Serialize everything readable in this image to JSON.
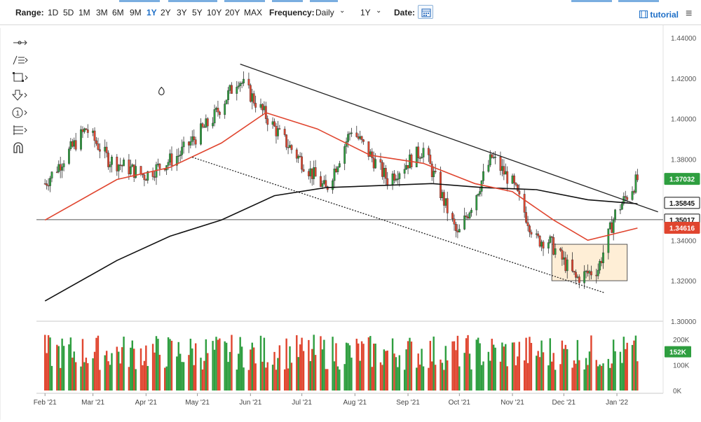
{
  "toolbar": {
    "range_label": "Range:",
    "ranges": [
      "1D",
      "5D",
      "1M",
      "3M",
      "6M",
      "9M",
      "1Y",
      "2Y",
      "3Y",
      "5Y",
      "10Y",
      "20Y",
      "MAX"
    ],
    "active_range": "1Y",
    "frequency_label": "Frequency:",
    "frequency_value": "Daily",
    "period_value": "1Y",
    "date_label": "Date:",
    "tutorial_label": "tutorial",
    "menu_glyph": "≡"
  },
  "tools": [
    "crosshair-icon",
    "draw-lines-icon",
    "shapes-icon",
    "arrow-icon",
    "annotation-icon",
    "fibonacci-icon",
    "magnet-icon"
  ],
  "chart_data": {
    "type": "candlestick",
    "price_axis": {
      "ticks": [
        "1.44000",
        "1.42000",
        "1.40000",
        "1.38000",
        "1.36000",
        "1.34000",
        "1.32000",
        "1.30000"
      ],
      "min": 1.3,
      "max": 1.44
    },
    "volume_axis": {
      "ticks": [
        "200K",
        "100K",
        "0K"
      ],
      "max": 250000
    },
    "x_labels": [
      "Feb '21",
      "Mar '21",
      "Apr '21",
      "May '21",
      "Jun '21",
      "Jul '21",
      "Aug '21",
      "Sep '21",
      "Oct '21",
      "Nov '21",
      "Dec '21",
      "Jan '22"
    ],
    "price_labels": [
      {
        "text": "1.37032",
        "value": 1.37032,
        "color": "#2e9e3f"
      },
      {
        "text": "1.35845",
        "value": 1.35845,
        "color": "#111111"
      },
      {
        "text": "1.35017",
        "value": 1.35017,
        "color": "#111111"
      },
      {
        "text": "1.34616",
        "value": 1.34616,
        "color": "#e0452f"
      }
    ],
    "volume_label": {
      "text": "152K",
      "value": 152000,
      "color": "#2e9e3f"
    },
    "horizontal_level": 1.35017,
    "anchors": [
      {
        "x": "2021-02-01",
        "y": 1.368
      },
      {
        "x": "2021-02-25",
        "y": 1.395
      },
      {
        "x": "2021-03-10",
        "y": 1.38
      },
      {
        "x": "2021-03-31",
        "y": 1.372
      },
      {
        "x": "2021-04-20",
        "y": 1.382
      },
      {
        "x": "2021-05-10",
        "y": 1.4
      },
      {
        "x": "2021-05-25",
        "y": 1.42
      },
      {
        "x": "2021-06-18",
        "y": 1.392
      },
      {
        "x": "2021-07-15",
        "y": 1.365
      },
      {
        "x": "2021-07-30",
        "y": 1.395
      },
      {
        "x": "2021-08-20",
        "y": 1.37
      },
      {
        "x": "2021-09-10",
        "y": 1.385
      },
      {
        "x": "2021-09-30",
        "y": 1.342
      },
      {
        "x": "2021-10-20",
        "y": 1.381
      },
      {
        "x": "2021-11-01",
        "y": 1.368
      },
      {
        "x": "2021-11-15",
        "y": 1.34
      },
      {
        "x": "2021-11-22",
        "y": 1.34
      },
      {
        "x": "2021-12-08",
        "y": 1.321
      },
      {
        "x": "2021-12-21",
        "y": 1.326
      },
      {
        "x": "2021-12-31",
        "y": 1.353
      },
      {
        "x": "2022-01-13",
        "y": 1.37
      }
    ],
    "ma_fast": [
      {
        "x": "2021-02-01",
        "y": 1.35
      },
      {
        "x": "2021-03-15",
        "y": 1.37
      },
      {
        "x": "2021-04-15",
        "y": 1.376
      },
      {
        "x": "2021-05-15",
        "y": 1.388
      },
      {
        "x": "2021-06-10",
        "y": 1.403
      },
      {
        "x": "2021-07-10",
        "y": 1.395
      },
      {
        "x": "2021-08-10",
        "y": 1.382
      },
      {
        "x": "2021-09-10",
        "y": 1.378
      },
      {
        "x": "2021-10-10",
        "y": 1.368
      },
      {
        "x": "2021-11-01",
        "y": 1.364
      },
      {
        "x": "2021-11-25",
        "y": 1.35
      },
      {
        "x": "2021-12-15",
        "y": 1.34
      },
      {
        "x": "2022-01-13",
        "y": 1.346
      }
    ],
    "ma_slow": [
      {
        "x": "2021-02-01",
        "y": 1.31
      },
      {
        "x": "2021-03-15",
        "y": 1.33
      },
      {
        "x": "2021-04-15",
        "y": 1.342
      },
      {
        "x": "2021-05-15",
        "y": 1.35
      },
      {
        "x": "2021-06-15",
        "y": 1.362
      },
      {
        "x": "2021-07-15",
        "y": 1.366
      },
      {
        "x": "2021-08-15",
        "y": 1.367
      },
      {
        "x": "2021-09-15",
        "y": 1.368
      },
      {
        "x": "2021-10-15",
        "y": 1.366
      },
      {
        "x": "2021-11-15",
        "y": 1.365
      },
      {
        "x": "2021-12-15",
        "y": 1.36
      },
      {
        "x": "2022-01-13",
        "y": 1.358
      }
    ],
    "trendlines": [
      {
        "x1": "2021-05-26",
        "y1": 1.427,
        "x2": "2022-01-25",
        "y2": 1.354,
        "style": "solid"
      },
      {
        "x1": "2021-04-28",
        "y1": 1.381,
        "x2": "2021-12-25",
        "y2": 1.314,
        "style": "dotted"
      }
    ],
    "rectangle": {
      "x1": "2021-11-24",
      "x2": "2022-01-07",
      "y1": 1.32,
      "y2": 1.338
    },
    "series": [
      {
        "name": "",
        "type": "candles",
        "color_up": "#2e9e3f",
        "color_down": "#e0452f"
      }
    ]
  }
}
